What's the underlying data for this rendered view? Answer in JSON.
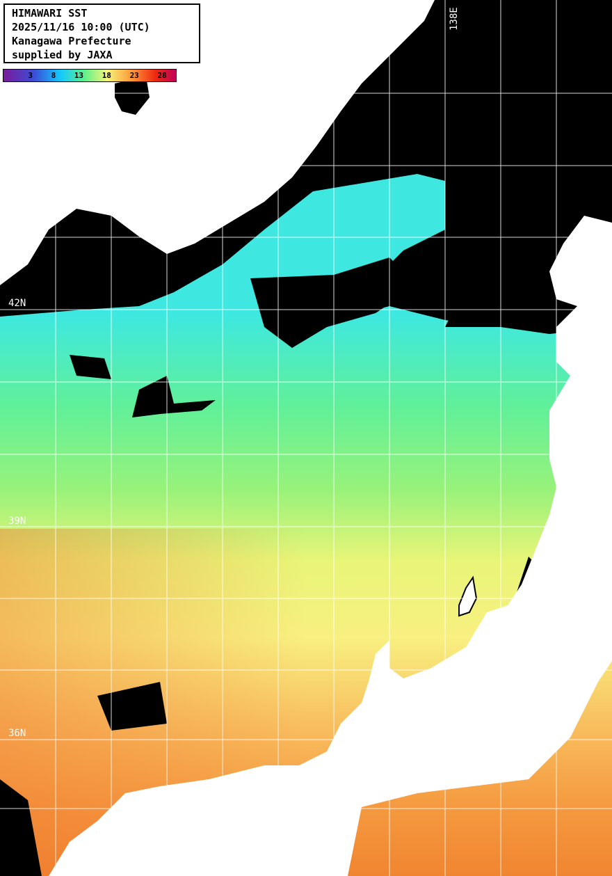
{
  "header": {
    "lines": [
      "HIMAWARI SST",
      "2025/11/16 10:00 (UTC)",
      "Kanagawa Prefecture",
      "supplied by JAXA"
    ]
  },
  "colorbar": {
    "ticks": [
      "3",
      "8",
      "13",
      "18",
      "23",
      "28"
    ],
    "colors": [
      "#7b1a9c",
      "#3a4fd6",
      "#14c8ff",
      "#5ff08a",
      "#f5f57a",
      "#ff9a3a",
      "#ee2a10",
      "#c0005a"
    ]
  },
  "grid": {
    "lon_label": "138E",
    "lat_labels": [
      "42N",
      "39N",
      "36N"
    ]
  },
  "colors": {
    "land": "#ffffff",
    "cloud": "#000000",
    "grid": "#ffffff"
  }
}
